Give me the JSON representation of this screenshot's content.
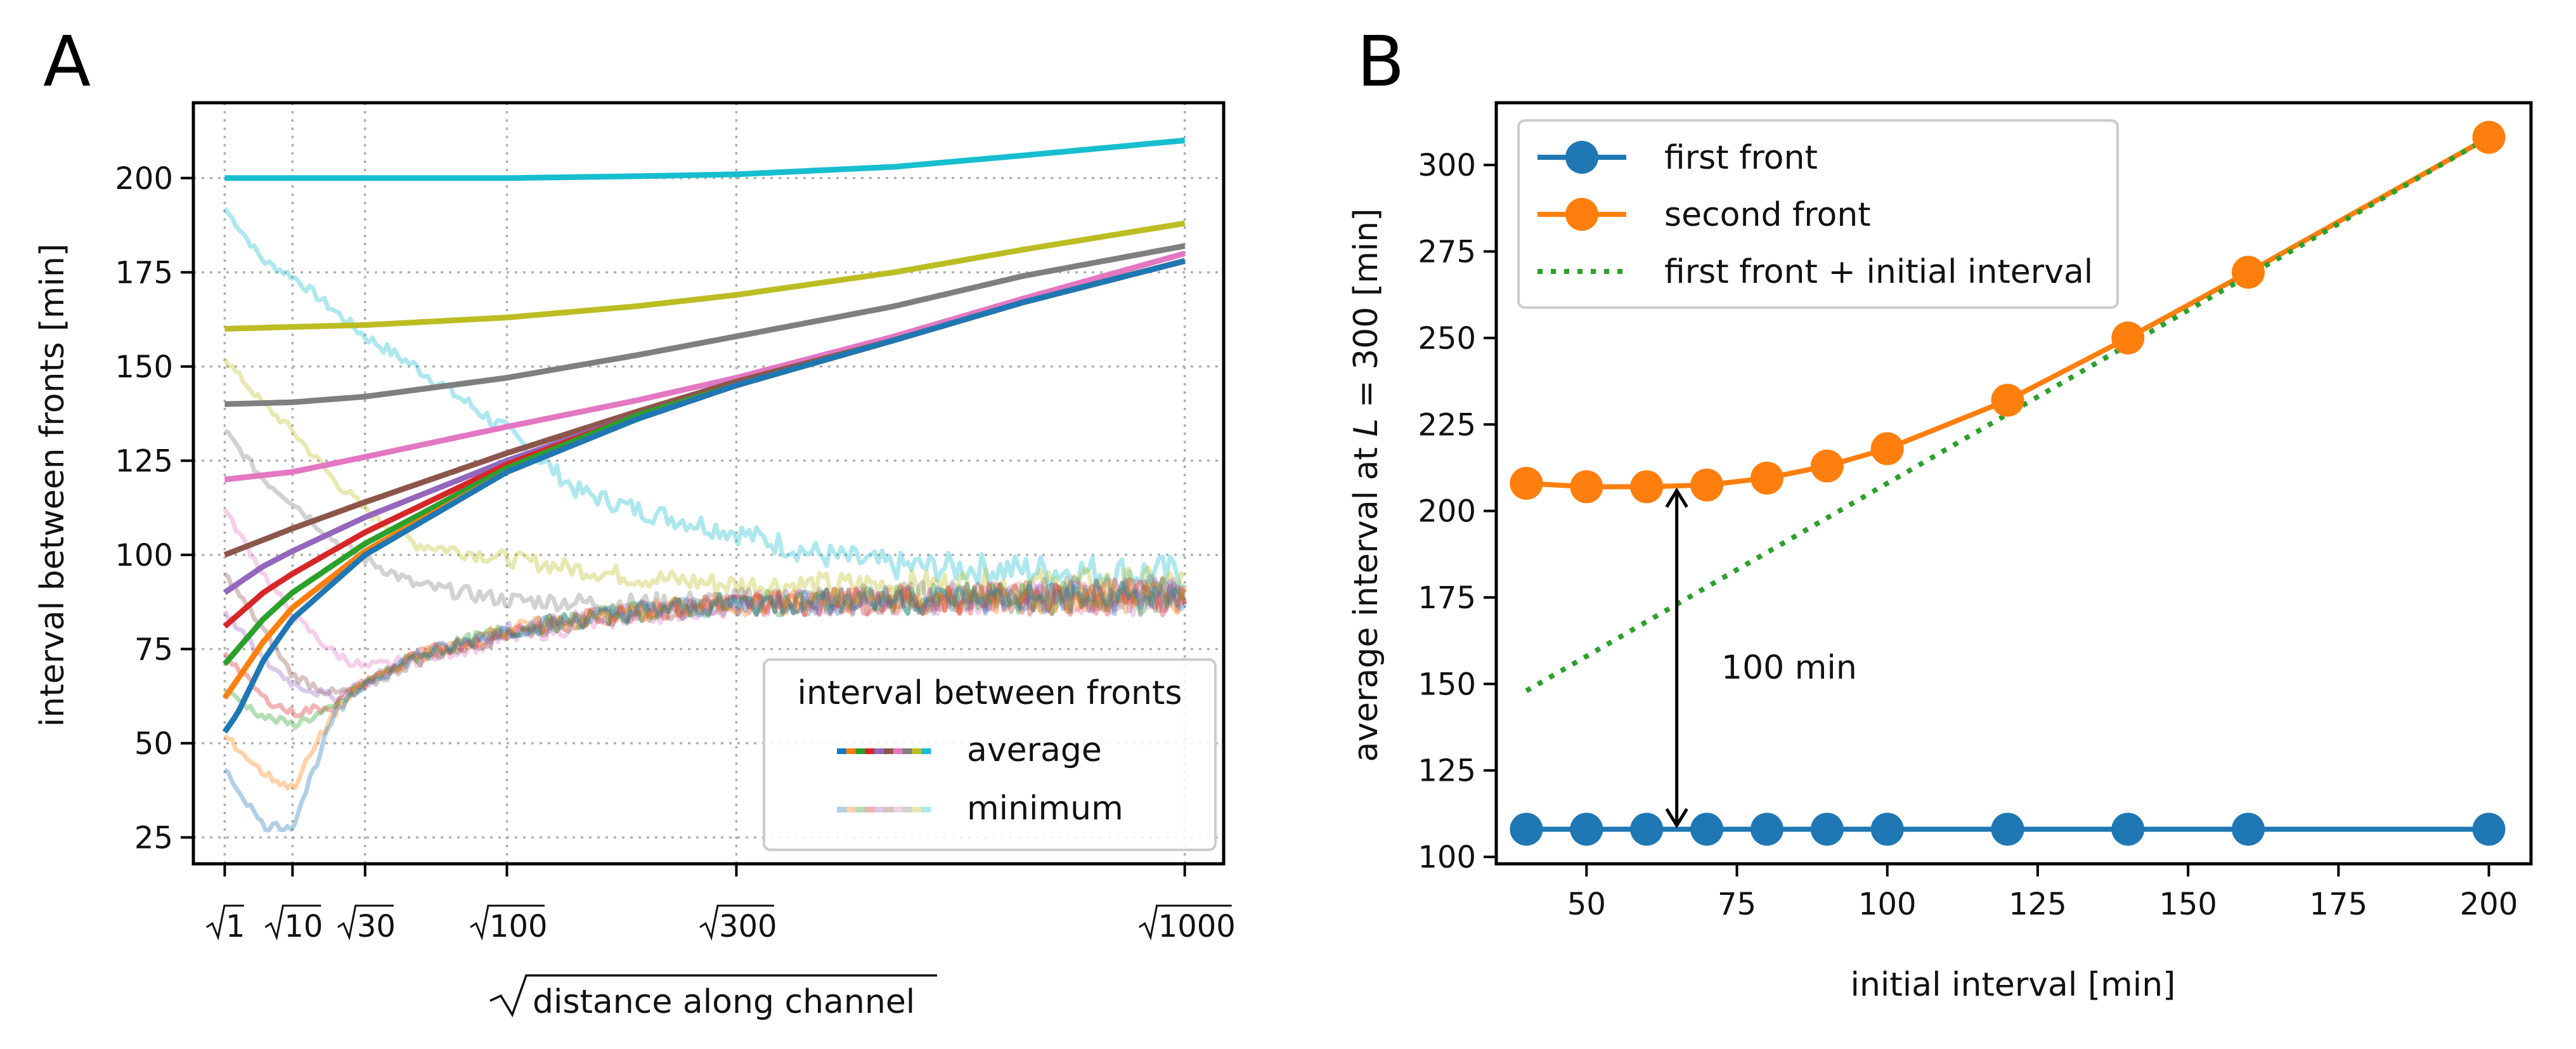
{
  "panels": {
    "a": "A",
    "b": "B"
  },
  "chart_data": [
    {
      "type": "line",
      "panel": "A",
      "xlabel": "distance along channel",
      "xlabel_sqrt": true,
      "ylabel": "interval between fronts [min]",
      "x_scale": "sqrt",
      "xlim": [
        0,
        1080
      ],
      "ylim": [
        18,
        220
      ],
      "x_ticks": [
        1,
        10,
        30,
        100,
        300,
        1000
      ],
      "x_tick_labels": [
        "1",
        "10",
        "30",
        "100",
        "300",
        "1000"
      ],
      "y_ticks": [
        25,
        50,
        75,
        100,
        125,
        150,
        175,
        200
      ],
      "grid": true,
      "legend": {
        "title": "interval between fronts",
        "entries": [
          "average",
          "minimum"
        ],
        "placement": "lower-right"
      },
      "average_series": [
        {
          "color": "#17becf",
          "x": [
            1,
            10,
            30,
            100,
            200,
            300,
            500,
            700,
            1000
          ],
          "y": [
            200,
            200,
            200,
            200,
            200.5,
            201,
            203,
            206,
            210
          ]
        },
        {
          "color": "#bcbd22",
          "x": [
            1,
            10,
            30,
            100,
            200,
            300,
            500,
            700,
            1000
          ],
          "y": [
            160,
            160.5,
            161,
            163,
            166,
            169,
            175,
            181,
            188
          ]
        },
        {
          "color": "#7f7f7f",
          "x": [
            1,
            10,
            30,
            100,
            200,
            300,
            500,
            700,
            1000
          ],
          "y": [
            140,
            140.5,
            142,
            147,
            153,
            158,
            166,
            174,
            182
          ]
        },
        {
          "color": "#e377c2",
          "x": [
            1,
            10,
            30,
            100,
            200,
            300,
            500,
            700,
            1000
          ],
          "y": [
            120,
            122,
            126,
            134,
            141,
            147,
            158,
            168,
            180
          ]
        },
        {
          "color": "#8c564b",
          "x": [
            1,
            5,
            10,
            30,
            100,
            200,
            300,
            500,
            700,
            1000
          ],
          "y": [
            100,
            104,
            107,
            114,
            127,
            138,
            146,
            157,
            167,
            178
          ]
        },
        {
          "color": "#9467bd",
          "x": [
            1,
            5,
            10,
            30,
            100,
            200,
            300,
            500,
            700,
            1000
          ],
          "y": [
            90,
            97,
            101,
            110,
            125,
            137,
            145,
            157,
            167,
            178
          ]
        },
        {
          "color": "#d62728",
          "x": [
            1,
            5,
            10,
            30,
            100,
            200,
            300,
            500,
            700,
            1000
          ],
          "y": [
            81,
            90,
            95,
            106,
            124,
            137,
            145,
            157,
            167,
            178
          ]
        },
        {
          "color": "#2ca02c",
          "x": [
            1,
            5,
            10,
            30,
            100,
            200,
            300,
            500,
            700,
            1000
          ],
          "y": [
            71,
            83,
            90,
            103,
            123,
            137,
            145,
            157,
            167,
            178
          ]
        },
        {
          "color": "#ff7f0e",
          "x": [
            1,
            5,
            10,
            30,
            100,
            200,
            300,
            500,
            700,
            1000
          ],
          "y": [
            62,
            77,
            86,
            101,
            122,
            136,
            145,
            157,
            167,
            178
          ]
        },
        {
          "color": "#1f77b4",
          "x": [
            1,
            2,
            5,
            10,
            30,
            100,
            200,
            300,
            500,
            700,
            1000
          ],
          "y": [
            53,
            58,
            72,
            83,
            100,
            122,
            136,
            145,
            157,
            167,
            178
          ]
        }
      ],
      "minimum_series": [
        {
          "color": "#17becf",
          "x": [
            1,
            5,
            10,
            20,
            30,
            50,
            100,
            150,
            200,
            300,
            400,
            500,
            700,
            1000
          ],
          "y": [
            192,
            178,
            174,
            165,
            158,
            150,
            133,
            117,
            112,
            106,
            100,
            97,
            96,
            95
          ]
        },
        {
          "color": "#bcbd22",
          "x": [
            1,
            5,
            10,
            20,
            30,
            50,
            100,
            200,
            300,
            500,
            1000
          ],
          "y": [
            152,
            140,
            133,
            120,
            112,
            103,
            99,
            94,
            92,
            92,
            92
          ]
        },
        {
          "color": "#7f7f7f",
          "x": [
            1,
            5,
            10,
            20,
            30,
            50,
            100,
            200,
            300,
            500,
            1000
          ],
          "y": [
            133,
            120,
            114,
            104,
            99,
            92,
            88,
            87,
            88,
            89,
            90
          ]
        },
        {
          "color": "#e377c2",
          "x": [
            1,
            5,
            10,
            20,
            30,
            50,
            100,
            200,
            300,
            500,
            1000
          ],
          "y": [
            112,
            95,
            84,
            74,
            70,
            72,
            78,
            84,
            87,
            88,
            89
          ]
        },
        {
          "color": "#8c564b",
          "x": [
            1,
            5,
            10,
            20,
            30,
            50,
            100,
            200,
            300,
            500,
            1000
          ],
          "y": [
            95,
            80,
            68,
            63,
            65,
            72,
            79,
            85,
            87,
            88,
            89
          ]
        },
        {
          "color": "#9467bd",
          "x": [
            1,
            5,
            10,
            20,
            30,
            50,
            100,
            200,
            300,
            500,
            1000
          ],
          "y": [
            85,
            72,
            66,
            62,
            66,
            73,
            80,
            85,
            87,
            88,
            89
          ]
        },
        {
          "color": "#d62728",
          "x": [
            1,
            5,
            10,
            20,
            30,
            50,
            100,
            200,
            300,
            500,
            1000
          ],
          "y": [
            74,
            62,
            58,
            60,
            66,
            73,
            80,
            85,
            87,
            88,
            89
          ]
        },
        {
          "color": "#2ca02c",
          "x": [
            1,
            5,
            10,
            20,
            30,
            50,
            100,
            200,
            300,
            500,
            1000
          ],
          "y": [
            64,
            57,
            55,
            59,
            66,
            73,
            80,
            85,
            87,
            88,
            89
          ]
        },
        {
          "color": "#ff7f0e",
          "x": [
            1,
            5,
            10,
            20,
            30,
            50,
            100,
            200,
            300,
            500,
            1000
          ],
          "y": [
            52,
            42,
            38,
            58,
            66,
            73,
            80,
            85,
            87,
            88,
            89
          ]
        },
        {
          "color": "#1f77b4",
          "x": [
            1,
            5,
            10,
            20,
            30,
            50,
            100,
            200,
            300,
            500,
            1000
          ],
          "y": [
            43,
            28,
            28,
            57,
            66,
            73,
            80,
            85,
            87,
            88,
            89
          ]
        }
      ]
    },
    {
      "type": "line",
      "panel": "B",
      "xlabel": "initial interval [min]",
      "ylabel": "average interval at L = 300 [min]",
      "ylabel_parts": {
        "pre": "average interval at ",
        "var": "L",
        "post": " = 300 [min]"
      },
      "xlim": [
        35,
        207
      ],
      "ylim": [
        98,
        318
      ],
      "x_ticks": [
        50,
        75,
        100,
        125,
        150,
        175,
        200
      ],
      "y_ticks": [
        100,
        125,
        150,
        175,
        200,
        225,
        250,
        275,
        300
      ],
      "grid": false,
      "legend_placement": "upper-left",
      "x": [
        40,
        50,
        60,
        70,
        80,
        90,
        100,
        120,
        140,
        160,
        200
      ],
      "series": [
        {
          "name": "first front",
          "color": "#1f77b4",
          "style": "line-marker",
          "values": [
            108,
            108,
            108,
            108,
            108,
            108,
            108,
            108,
            108,
            108,
            108
          ]
        },
        {
          "name": "second front",
          "color": "#ff7f0e",
          "style": "line-marker",
          "values": [
            208,
            207,
            207,
            207.5,
            209.5,
            213,
            218,
            232,
            250,
            269,
            308
          ]
        },
        {
          "name": "first front + initial interval",
          "color": "#2ca02c",
          "style": "dotted",
          "x": [
            40,
            200
          ],
          "values": [
            148,
            308
          ]
        }
      ],
      "annotation": {
        "text": "100 min",
        "x": 65,
        "y_from": 108,
        "y_to": 207
      }
    }
  ]
}
